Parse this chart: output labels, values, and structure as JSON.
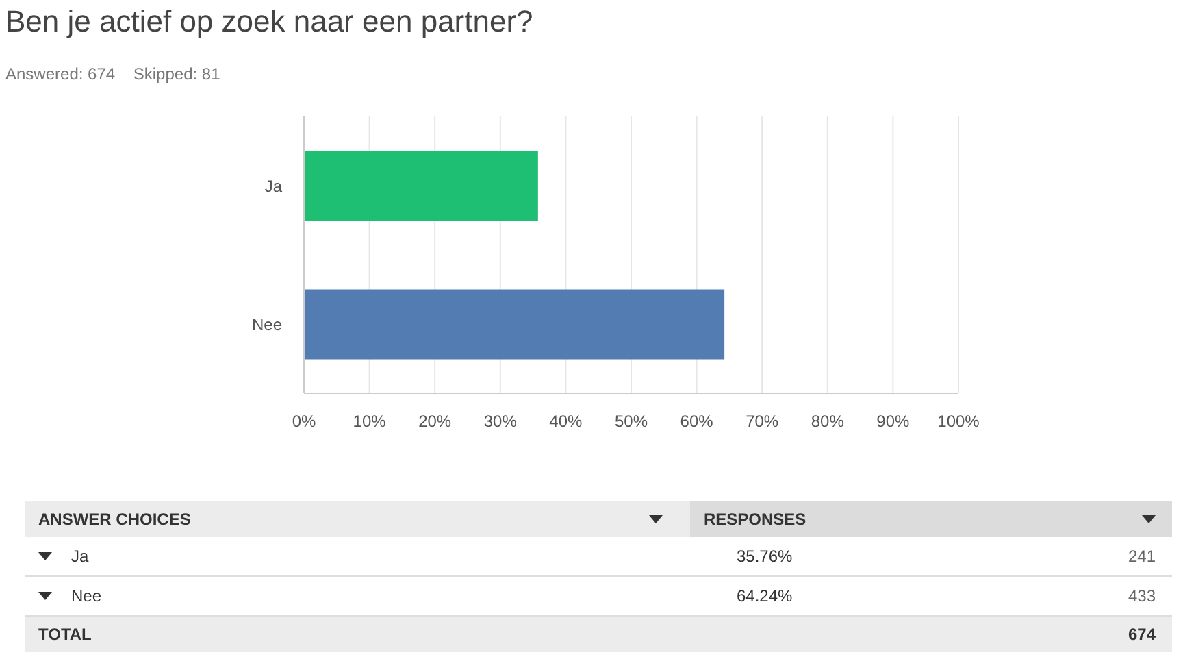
{
  "chart_data": {
    "type": "bar",
    "orientation": "horizontal",
    "title": "Ben je actief op zoek naar een partner?",
    "subtitle": "Answered: 674    Skipped: 81",
    "categories": [
      "Ja",
      "Nee"
    ],
    "values": [
      35.76,
      64.24
    ],
    "colors": [
      "#1fbf73",
      "#527cb2"
    ],
    "xlim": [
      0,
      100
    ],
    "xticks": [
      {
        "value": 0,
        "label": "0%"
      },
      {
        "value": 10,
        "label": "10%"
      },
      {
        "value": 20,
        "label": "20%"
      },
      {
        "value": 30,
        "label": "30%"
      },
      {
        "value": 40,
        "label": "40%"
      },
      {
        "value": 50,
        "label": "50%"
      },
      {
        "value": 60,
        "label": "60%"
      },
      {
        "value": 70,
        "label": "70%"
      },
      {
        "value": 80,
        "label": "80%"
      },
      {
        "value": 90,
        "label": "90%"
      },
      {
        "value": 100,
        "label": "100%"
      }
    ],
    "grid": "x",
    "annotations": [
      "ANSWER CHOICES",
      "RESPONSES",
      "35.76%",
      "241",
      "64.24%",
      "433",
      "TOTAL",
      "674"
    ]
  }
}
